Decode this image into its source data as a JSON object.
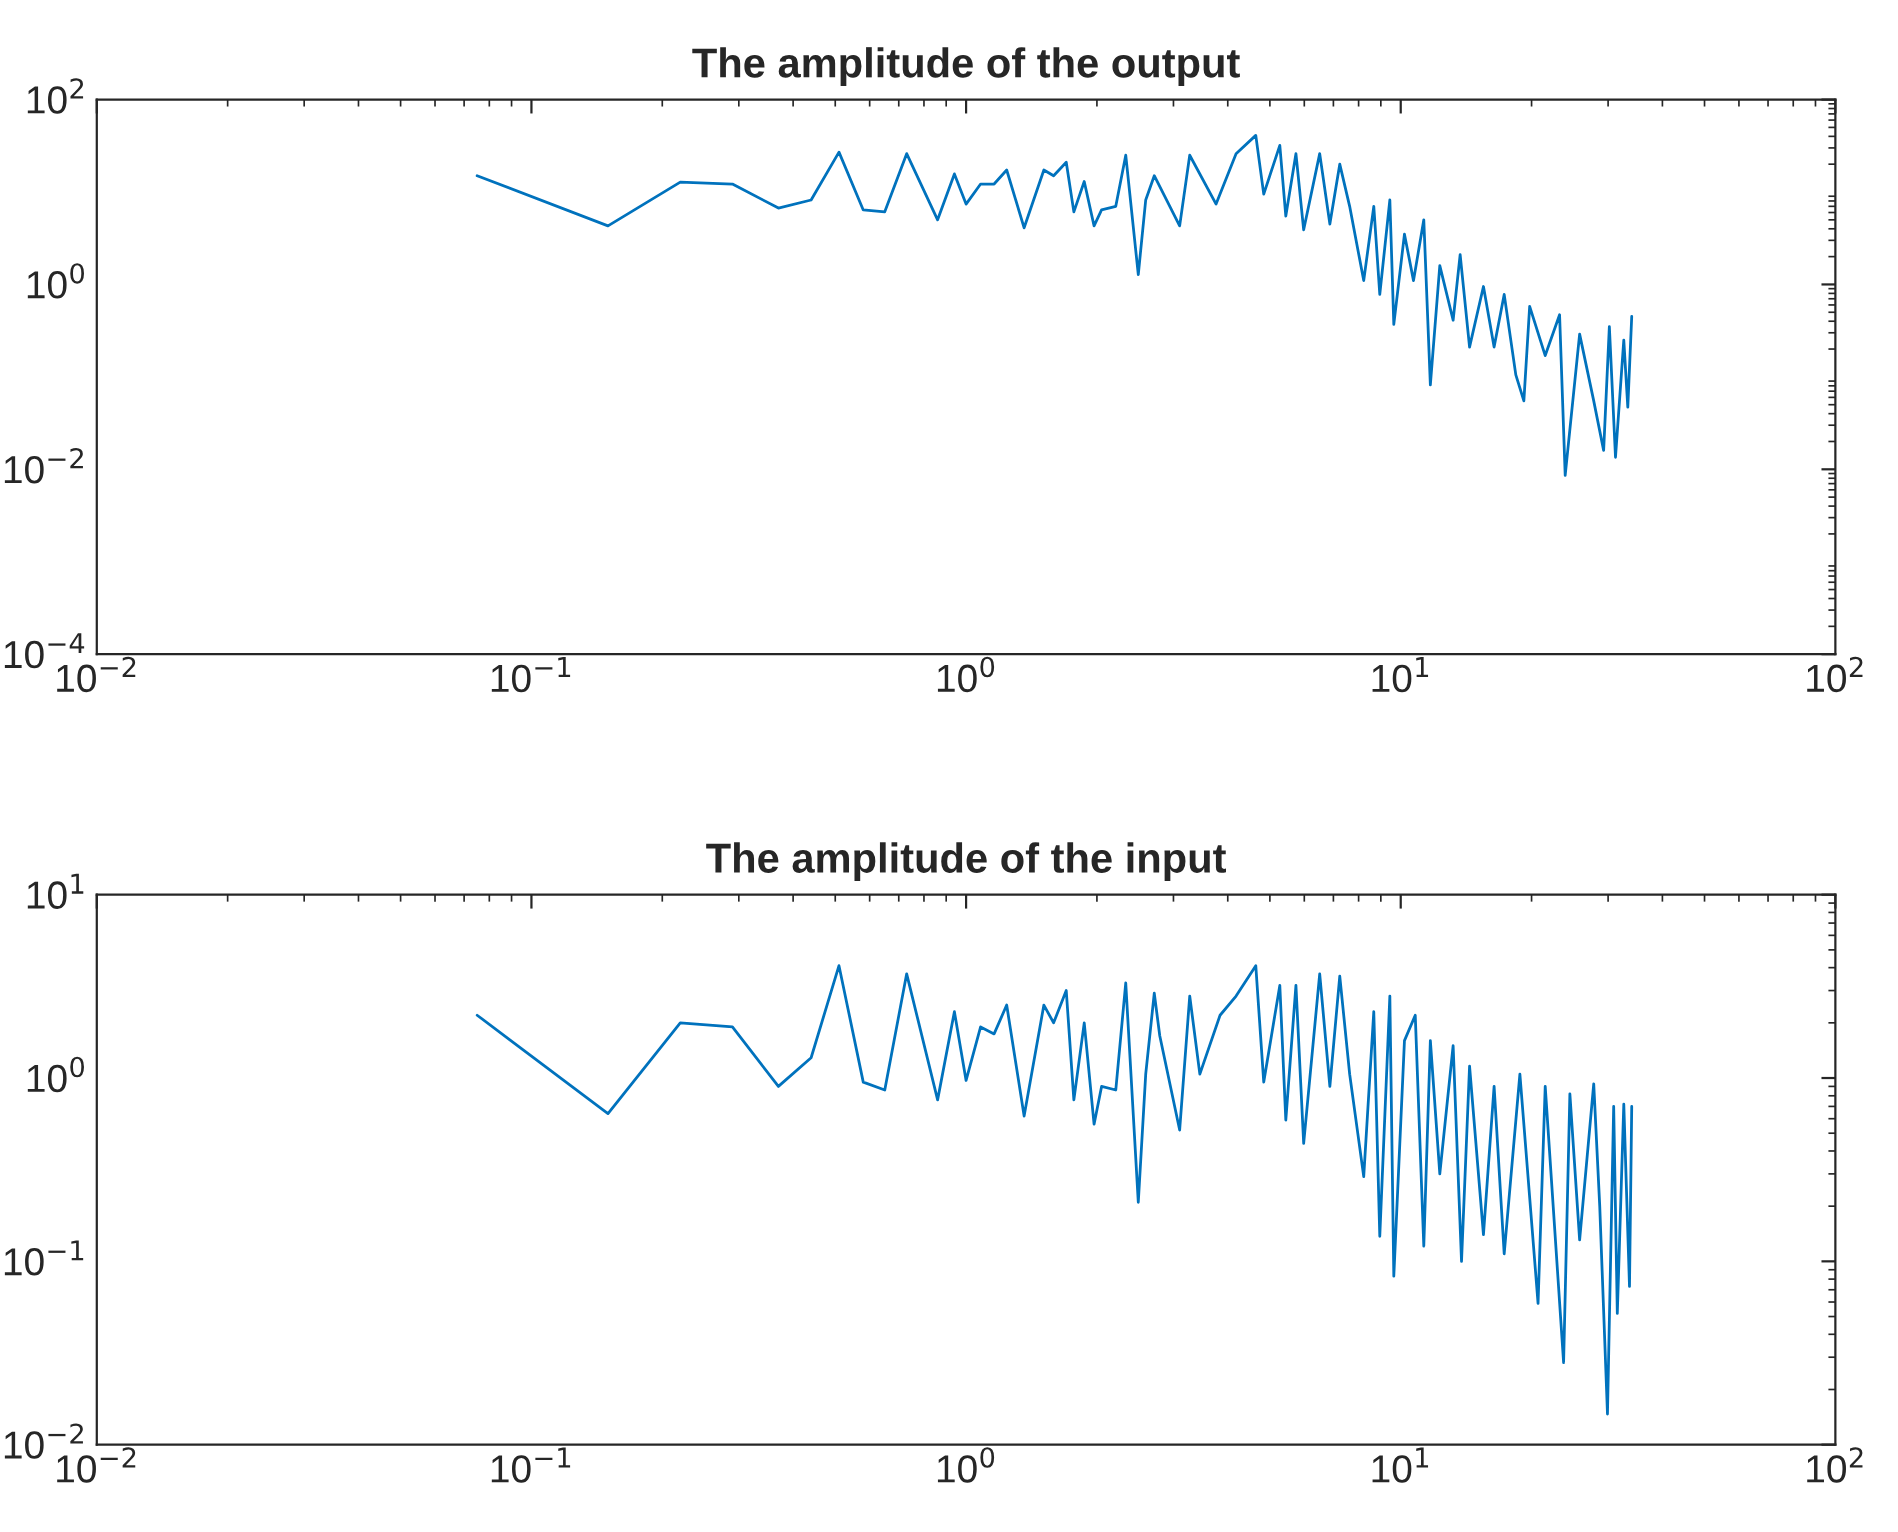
{
  "chart_data": [
    {
      "type": "line",
      "title": "The amplitude of the output",
      "log": "xy",
      "grid": false,
      "legend": false,
      "xlim": [
        0.01,
        100
      ],
      "xticks": [
        {
          "value": 0.01,
          "label": "10$^{−2}$"
        },
        {
          "value": 0.1,
          "label": "10$^{−1}$"
        },
        {
          "value": 1,
          "label": "10$^{0}$"
        },
        {
          "value": 10,
          "label": "10$^{1}$"
        },
        {
          "value": 100,
          "label": "10$^{2}$"
        }
      ],
      "ylim": [
        0.0001,
        100
      ],
      "yticks": [
        {
          "value": 0.0001,
          "label": "10$^{−4}$"
        },
        {
          "value": 0.01,
          "label": "10$^{−2}$"
        },
        {
          "value": 1,
          "label": "10$^{0}$"
        },
        {
          "value": 100,
          "label": "10$^{2}$"
        }
      ],
      "series": [
        {
          "color": "#0072bd",
          "x": [
            0.075,
            0.15,
            0.22,
            0.29,
            0.37,
            0.44,
            0.51,
            0.58,
            0.65,
            0.73,
            0.86,
            0.94,
            1.0,
            1.08,
            1.16,
            1.24,
            1.36,
            1.51,
            1.59,
            1.7,
            1.77,
            1.87,
            1.97,
            2.05,
            2.21,
            2.33,
            2.49,
            2.59,
            2.71,
            3.1,
            3.27,
            3.76,
            4.18,
            4.64,
            4.84,
            5.27,
            5.44,
            5.74,
            5.98,
            6.51,
            6.87,
            7.24,
            7.63,
            8.22,
            8.67,
            8.95,
            9.44,
            9.64,
            10.2,
            10.7,
            11.3,
            11.7,
            12.3,
            13.2,
            13.7,
            14.4,
            15.5,
            16.4,
            17.3,
            18.4,
            19.2,
            19.8,
            21.5,
            23.2,
            23.9,
            25.8,
            27.8,
            29.3,
            30.2,
            31.2,
            32.6,
            33.3,
            34.0
          ],
          "values": [
            15,
            4.3,
            12.8,
            12.2,
            6.7,
            8.2,
            27,
            6.4,
            6.1,
            26,
            5.0,
            15.7,
            7.4,
            12.2,
            12.2,
            17.3,
            4.1,
            17.3,
            15,
            21,
            6.1,
            13,
            4.3,
            6.4,
            7.0,
            25,
            1.28,
            8.2,
            15,
            4.3,
            25,
            7.4,
            26,
            41,
            9.5,
            32,
            5.5,
            26,
            3.9,
            26,
            4.5,
            20,
            7.0,
            1.1,
            7.0,
            0.78,
            8.2,
            0.37,
            3.5,
            1.1,
            5.0,
            0.082,
            1.6,
            0.41,
            2.1,
            0.21,
            0.95,
            0.21,
            0.78,
            0.105,
            0.055,
            0.58,
            0.17,
            0.47,
            0.0086,
            0.29,
            0.055,
            0.016,
            0.35,
            0.0135,
            0.25,
            0.047,
            0.45
          ]
        }
      ]
    },
    {
      "type": "line",
      "title": "The amplitude of the input",
      "log": "xy",
      "grid": false,
      "legend": false,
      "xlim": [
        0.01,
        100
      ],
      "xticks": [
        {
          "value": 0.01,
          "label": "10$^{−2}$"
        },
        {
          "value": 0.1,
          "label": "10$^{−1}$"
        },
        {
          "value": 1,
          "label": "10$^{0}$"
        },
        {
          "value": 10,
          "label": "10$^{1}$"
        },
        {
          "value": 100,
          "label": "10$^{2}$"
        }
      ],
      "ylim": [
        0.01,
        10
      ],
      "yticks": [
        {
          "value": 0.01,
          "label": "10$^{−2}$"
        },
        {
          "value": 0.1,
          "label": "10$^{−1}$"
        },
        {
          "value": 1,
          "label": "10$^{0}$"
        },
        {
          "value": 10,
          "label": "10$^{1}$"
        }
      ],
      "series": [
        {
          "color": "#0072bd",
          "x": [
            0.075,
            0.15,
            0.22,
            0.29,
            0.37,
            0.44,
            0.51,
            0.58,
            0.65,
            0.73,
            0.86,
            0.94,
            1.0,
            1.08,
            1.16,
            1.24,
            1.36,
            1.51,
            1.59,
            1.7,
            1.77,
            1.87,
            1.97,
            2.05,
            2.21,
            2.33,
            2.49,
            2.59,
            2.71,
            2.79,
            3.1,
            3.27,
            3.45,
            3.84,
            4.18,
            4.64,
            4.84,
            5.27,
            5.44,
            5.74,
            5.98,
            6.51,
            6.87,
            7.24,
            7.63,
            8.22,
            8.67,
            8.95,
            9.44,
            9.64,
            10.2,
            10.8,
            11.3,
            11.7,
            12.3,
            13.2,
            13.8,
            14.4,
            15.5,
            16.4,
            17.3,
            18.8,
            20.7,
            21.5,
            23.7,
            24.5,
            25.8,
            27.8,
            28.7,
            29.9,
            30.9,
            31.5,
            32.6,
            33.6,
            34.0
          ],
          "values": [
            2.2,
            0.64,
            2.0,
            1.9,
            0.9,
            1.29,
            4.1,
            0.95,
            0.86,
            3.7,
            0.76,
            2.3,
            0.97,
            1.9,
            1.74,
            2.5,
            0.62,
            2.5,
            2.0,
            3.0,
            0.76,
            2.0,
            0.56,
            0.9,
            0.86,
            3.3,
            0.21,
            1.05,
            2.9,
            1.7,
            0.52,
            2.8,
            1.05,
            2.2,
            2.8,
            4.1,
            0.95,
            3.2,
            0.59,
            3.2,
            0.44,
            3.7,
            0.9,
            3.6,
            1.05,
            0.29,
            2.3,
            0.137,
            2.8,
            0.083,
            1.6,
            2.2,
            0.121,
            1.6,
            0.3,
            1.5,
            0.1,
            1.16,
            0.14,
            0.9,
            0.11,
            1.05,
            0.059,
            0.9,
            0.028,
            0.82,
            0.131,
            0.93,
            0.2,
            0.0147,
            0.7,
            0.052,
            0.72,
            0.073,
            0.7
          ]
        }
      ]
    }
  ]
}
